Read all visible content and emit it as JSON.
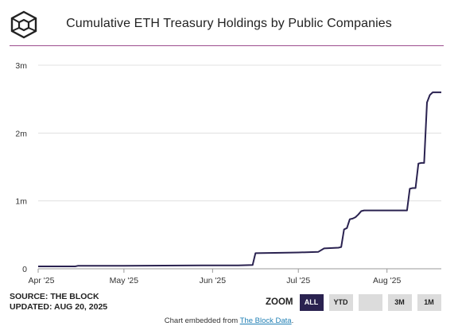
{
  "header": {
    "title": "Cumulative ETH Treasury Holdings by Public Companies"
  },
  "footer": {
    "source": "SOURCE: THE BLOCK",
    "updated": "UPDATED: AUG 20, 2025",
    "embed_prefix": "Chart embedded from ",
    "embed_link": "The Block Data",
    "embed_suffix": "."
  },
  "zoom": {
    "label": "ZOOM",
    "buttons": [
      "ALL",
      "YTD",
      "",
      "3M",
      "1M"
    ],
    "active": "ALL"
  },
  "colors": {
    "line": "#2a2250",
    "accent_rule": "#9c4e8e",
    "active_button": "#2a2250"
  },
  "chart_data": {
    "type": "line",
    "title": "Cumulative ETH Treasury Holdings by Public Companies",
    "xlabel": "",
    "ylabel": "",
    "ylim": [
      0,
      3000000
    ],
    "yticks": [
      0,
      1000000,
      2000000,
      3000000
    ],
    "ytick_labels": [
      "0",
      "1m",
      "2m",
      "3m"
    ],
    "xticks": [
      "2025-04-01",
      "2025-05-01",
      "2025-06-01",
      "2025-07-01",
      "2025-08-01"
    ],
    "xtick_labels": [
      "Apr '25",
      "May '25",
      "Jun '25",
      "Jul '25",
      "Aug '25"
    ],
    "xlim": [
      "2025-04-01",
      "2025-08-20"
    ],
    "grid": "horizontal",
    "series": [
      {
        "x": [
          "2025-04-01",
          "2025-04-14",
          "2025-04-15",
          "2025-05-01",
          "2025-05-15",
          "2025-05-31",
          "2025-06-10",
          "2025-06-15",
          "2025-06-16",
          "2025-06-25",
          "2025-07-01",
          "2025-07-08",
          "2025-07-10",
          "2025-07-15",
          "2025-07-16",
          "2025-07-17",
          "2025-07-18",
          "2025-07-19",
          "2025-07-20",
          "2025-07-21",
          "2025-07-22",
          "2025-07-23",
          "2025-07-24",
          "2025-07-25",
          "2025-07-26",
          "2025-08-01",
          "2025-08-05",
          "2025-08-08",
          "2025-08-09",
          "2025-08-10",
          "2025-08-11",
          "2025-08-12",
          "2025-08-13",
          "2025-08-14",
          "2025-08-15",
          "2025-08-16",
          "2025-08-17",
          "2025-08-18",
          "2025-08-19",
          "2025-08-20"
        ],
        "y": [
          35000,
          35000,
          45000,
          45000,
          47000,
          50000,
          50000,
          55000,
          230000,
          235000,
          240000,
          250000,
          300000,
          310000,
          320000,
          580000,
          600000,
          730000,
          740000,
          760000,
          800000,
          850000,
          860000,
          860000,
          860000,
          860000,
          860000,
          860000,
          1180000,
          1190000,
          1190000,
          1550000,
          1560000,
          1560000,
          2450000,
          2560000,
          2600000,
          2600000,
          2600000,
          2600000
        ]
      }
    ]
  }
}
